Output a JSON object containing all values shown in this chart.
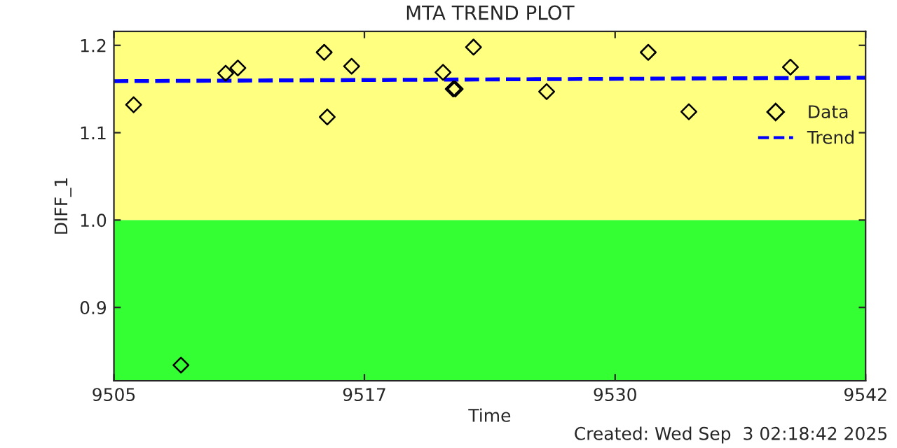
{
  "chart_data": {
    "type": "scatter",
    "title": "MTA TREND PLOT",
    "xlabel": "Time",
    "ylabel": "DIFF_1",
    "xlim": [
      9505,
      9542
    ],
    "xticks": [
      9505,
      {
        "value": 9517.33,
        "label": "9517"
      },
      {
        "value": 9529.67,
        "label": "9530"
      },
      9542
    ],
    "ylim": [
      0.816,
      1.216
    ],
    "yticks": [
      0.9,
      {
        "value": 1.0,
        "label": "1.0"
      },
      1.1,
      1.2
    ],
    "bands": [
      {
        "axis": "y",
        "from": 0.816,
        "to": 1.0,
        "color": "#33ff33"
      },
      {
        "axis": "y",
        "from": 1.0,
        "to": 1.216,
        "color": "#ffff80"
      }
    ],
    "series": [
      {
        "name": "Data",
        "color": "#000000",
        "marker": "diamond",
        "x": [
          9505.97,
          9508.3,
          9510.5,
          9511.1,
          9515.35,
          9515.5,
          9516.7,
          9521.2,
          9521.7,
          9521.8,
          9522.7,
          9526.3,
          9531.3,
          9533.3,
          9538.3
        ],
        "values": [
          1.132,
          0.834,
          1.168,
          1.174,
          1.192,
          1.118,
          1.176,
          1.169,
          1.15,
          1.15,
          1.198,
          1.147,
          1.192,
          1.124,
          1.175
        ]
      },
      {
        "name": "Trend",
        "type": "line",
        "color": "#0000ff",
        "line_style": "dashed",
        "x": [
          9505,
          9542
        ],
        "values": [
          1.159,
          1.163
        ]
      }
    ],
    "legend": "top right",
    "grid": false,
    "annotations": [
      "Created: Wed Sep  3 02:18:42 2025"
    ]
  }
}
